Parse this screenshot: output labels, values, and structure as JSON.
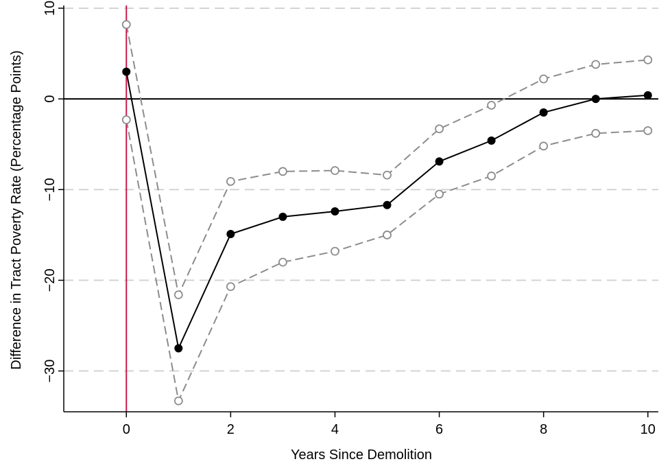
{
  "chart_data": {
    "type": "line",
    "xlabel": "Years Since Demolition",
    "ylabel": "Difference in Tract Poverty Rate (Percentage Points)",
    "xlim": [
      -1.2,
      10.2
    ],
    "ylim": [
      -34.5,
      10.3
    ],
    "x_ticks": [
      0,
      2,
      4,
      6,
      8,
      10
    ],
    "y_ticks": [
      10,
      0,
      -10,
      -20,
      -30
    ],
    "x_tick_labels": [
      "0",
      "2",
      "4",
      "6",
      "8",
      "10"
    ],
    "y_tick_labels": [
      "10",
      "0",
      "−10",
      "−20",
      "−30"
    ],
    "grid": "horizontal dashed",
    "reference_lines": {
      "horizontal_y": 0,
      "vertical_x": 0
    },
    "x": [
      0,
      1,
      2,
      3,
      4,
      5,
      6,
      7,
      8,
      9,
      10
    ],
    "series": [
      {
        "role": "estimate",
        "values": [
          3.0,
          -27.5,
          -14.9,
          -13.0,
          -12.4,
          -11.7,
          -6.9,
          -4.6,
          -1.5,
          0.0,
          0.4
        ]
      },
      {
        "role": "upper-ci",
        "values": [
          8.2,
          -21.6,
          -9.1,
          -8.0,
          -7.9,
          -8.4,
          -3.3,
          -0.7,
          2.2,
          3.8,
          4.3
        ]
      },
      {
        "role": "lower-ci",
        "values": [
          -2.3,
          -33.3,
          -20.7,
          -18.0,
          -16.8,
          -15.0,
          -10.5,
          -8.5,
          -5.2,
          -3.8,
          -3.5
        ]
      }
    ],
    "colors": {
      "estimate": "#000000",
      "ci": "#8c8c8c",
      "grid": "#d3d3d3",
      "vertical_line": "#c8194b",
      "zero_line": "#000000"
    }
  }
}
